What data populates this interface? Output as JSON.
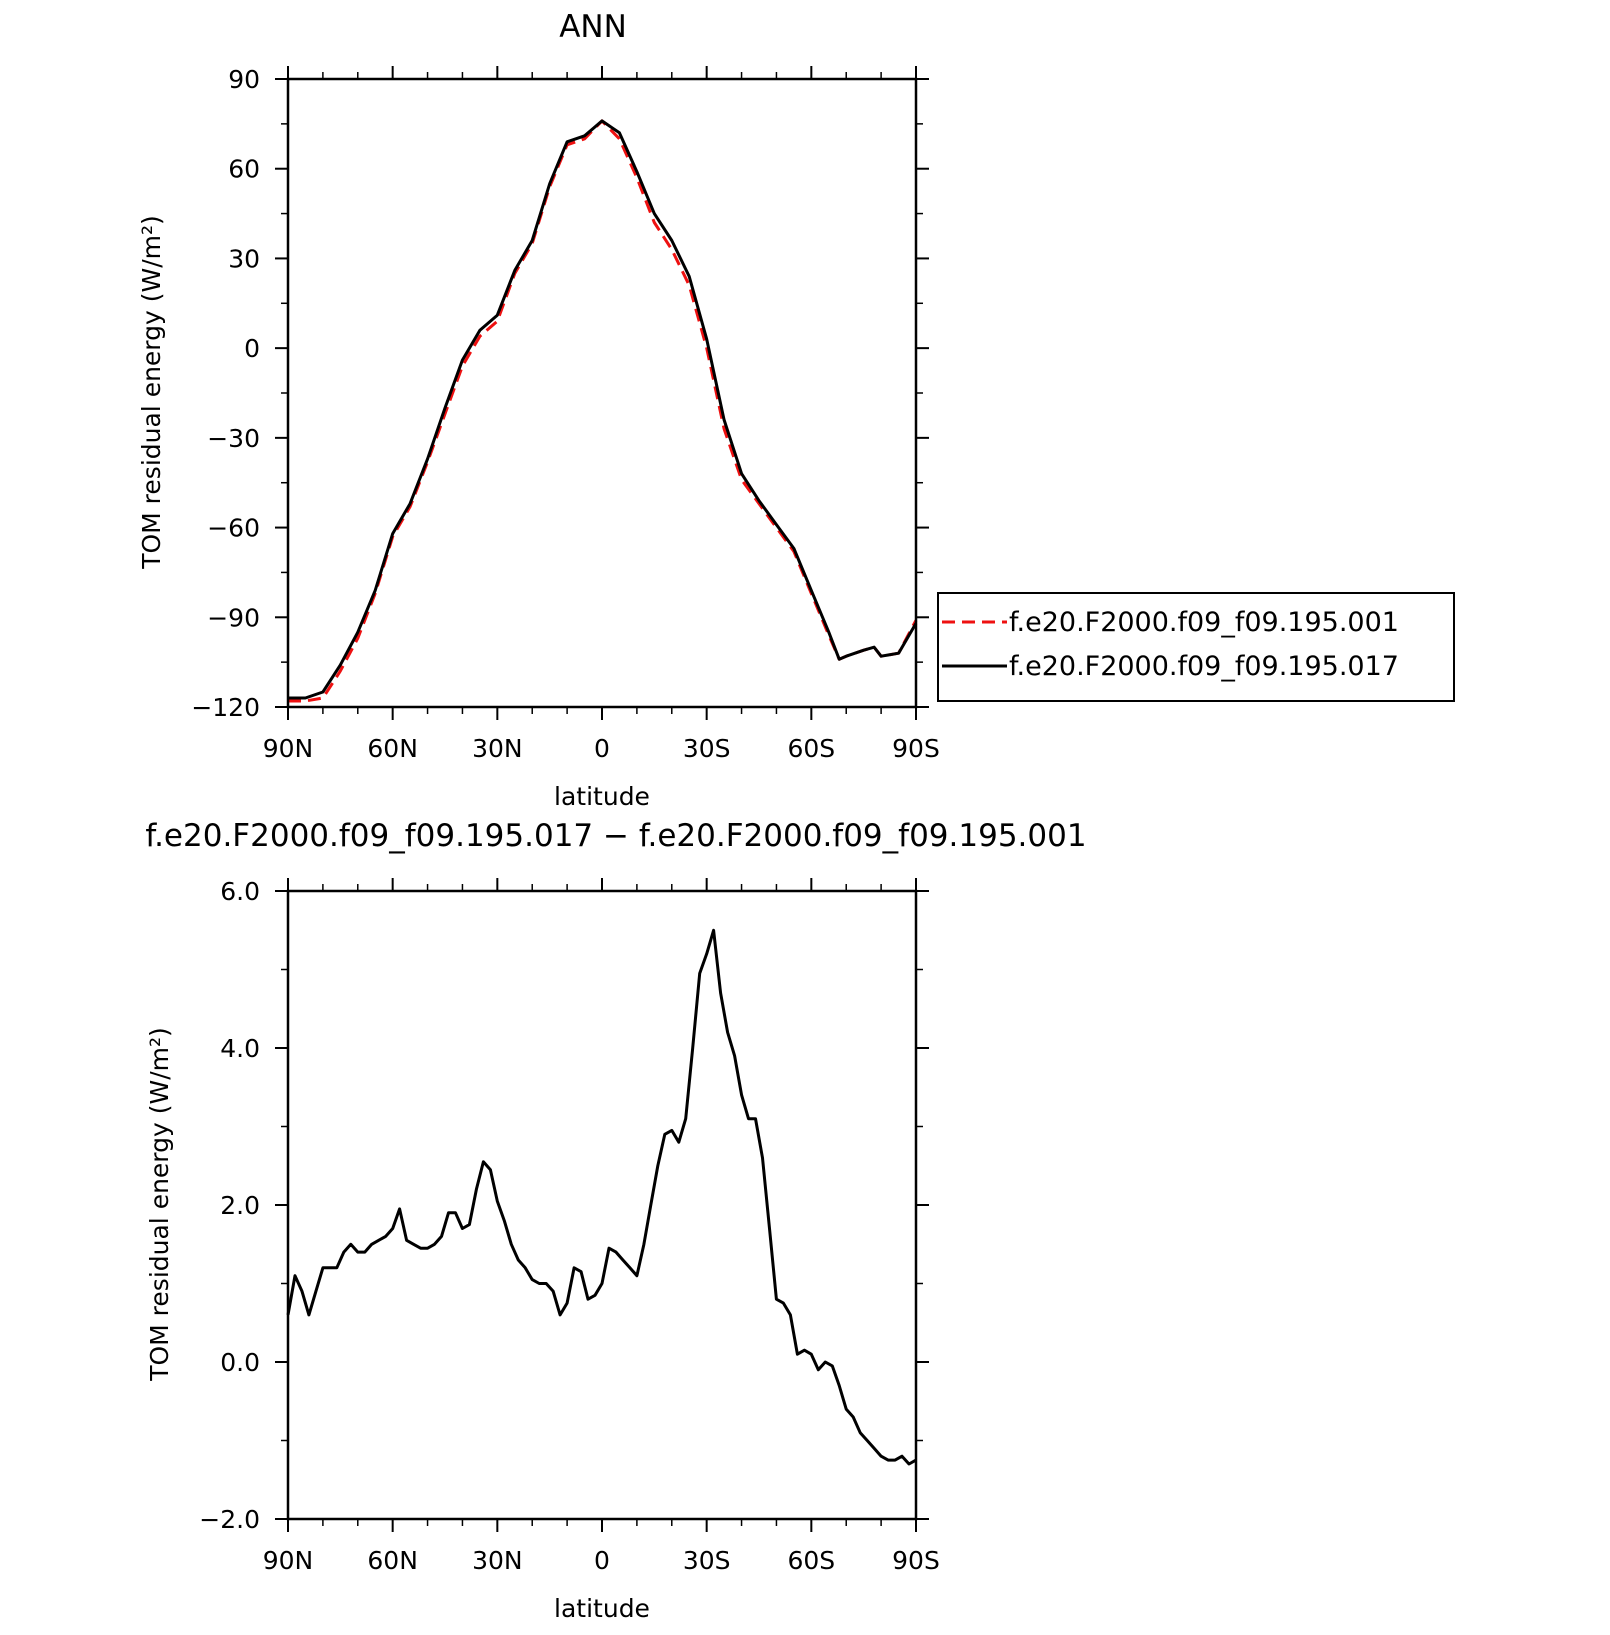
{
  "chart_data": [
    {
      "type": "line",
      "title": "ANN",
      "xlabel": "latitude",
      "ylabel": "TOM residual energy (W/m²)",
      "xlim": [
        90,
        -90
      ],
      "ylim": [
        -120,
        90
      ],
      "xticks": [
        90,
        60,
        30,
        0,
        -30,
        -60,
        -90
      ],
      "xtick_labels": [
        "90N",
        "60N",
        "30N",
        "0",
        "30S",
        "60S",
        "90S"
      ],
      "yticks": [
        -120,
        -90,
        -60,
        -30,
        0,
        30,
        60,
        90
      ],
      "ytick_labels": [
        "−120",
        "−90",
        "−60",
        "−30",
        "0",
        "30",
        "60",
        "90"
      ],
      "legend_position": "right",
      "series": [
        {
          "name": "f.e20.F2000.f09_f09.195.001",
          "color": "#ee1111",
          "dash": "dashed",
          "x": [
            90,
            85,
            80,
            75,
            70,
            65,
            60,
            55,
            50,
            45,
            40,
            35,
            30,
            25,
            20,
            15,
            10,
            5,
            0,
            -5,
            -10,
            -15,
            -20,
            -25,
            -30,
            -35,
            -40,
            -45,
            -50,
            -55,
            -60,
            -65,
            -68,
            -70,
            -75,
            -78,
            -80,
            -85,
            -90
          ],
          "y": [
            -118,
            -118,
            -117,
            -108,
            -97,
            -82,
            -63,
            -53,
            -38,
            -22,
            -6,
            4,
            9,
            25,
            35,
            54,
            68,
            70,
            76,
            70,
            57,
            42,
            33,
            21,
            0,
            -27,
            -44,
            -52,
            -60,
            -68,
            -82,
            -96,
            -104,
            -103,
            -101,
            -100,
            -103,
            -102,
            -91
          ],
          "display": "dashed red line"
        },
        {
          "name": "f.e20.F2000.f09_f09.195.017",
          "color": "#000000",
          "dash": "solid",
          "x": [
            90,
            85,
            80,
            75,
            70,
            65,
            60,
            55,
            50,
            45,
            40,
            35,
            30,
            25,
            20,
            15,
            10,
            5,
            0,
            -5,
            -10,
            -15,
            -20,
            -25,
            -30,
            -35,
            -40,
            -45,
            -50,
            -55,
            -60,
            -65,
            -68,
            -70,
            -75,
            -78,
            -80,
            -85,
            -90
          ],
          "y": [
            -117,
            -117,
            -115,
            -106,
            -95,
            -81,
            -62,
            -52,
            -37,
            -20,
            -4,
            6,
            11,
            26,
            36,
            55,
            69,
            71,
            76,
            72,
            59,
            45,
            36,
            24,
            3,
            -24,
            -42,
            -51,
            -59,
            -67,
            -81,
            -95,
            -104,
            -103,
            -101,
            -100,
            -103,
            -102,
            -92
          ],
          "display": "solid black line"
        }
      ]
    },
    {
      "type": "line",
      "title": "f.e20.F2000.f09_f09.195.017 − f.e20.F2000.f09_f09.195.001",
      "xlabel": "latitude",
      "ylabel": "TOM residual energy (W/m²)",
      "xlim": [
        90,
        -90
      ],
      "ylim": [
        -2,
        6
      ],
      "xticks": [
        90,
        60,
        30,
        0,
        -30,
        -60,
        -90
      ],
      "xtick_labels": [
        "90N",
        "60N",
        "30N",
        "0",
        "30S",
        "60S",
        "90S"
      ],
      "yticks": [
        -2,
        0,
        2,
        4,
        6
      ],
      "ytick_labels": [
        "−2.0",
        "0.0",
        "2.0",
        "4.0",
        "6.0"
      ],
      "series": [
        {
          "color": "#000000",
          "x": [
            90,
            88,
            86,
            84,
            82,
            80,
            78,
            76,
            74,
            72,
            70,
            68,
            66,
            64,
            62,
            60,
            58,
            56,
            54,
            52,
            50,
            48,
            46,
            44,
            42,
            40,
            38,
            36,
            34,
            32,
            30,
            28,
            26,
            24,
            22,
            20,
            18,
            16,
            14,
            12,
            10,
            8,
            6,
            4,
            2,
            0,
            -2,
            -4,
            -6,
            -8,
            -10,
            -12,
            -14,
            -16,
            -18,
            -20,
            -22,
            -24,
            -26,
            -28,
            -30,
            -32,
            -34,
            -36,
            -38,
            -40,
            -42,
            -44,
            -46,
            -48,
            -50,
            -52,
            -54,
            -56,
            -58,
            -60,
            -62,
            -64,
            -66,
            -68,
            -70,
            -72,
            -74,
            -76,
            -78,
            -80,
            -82,
            -84,
            -86,
            -88,
            -90
          ],
          "y": [
            0.6,
            1.1,
            0.9,
            0.6,
            0.9,
            1.2,
            1.2,
            1.2,
            1.4,
            1.5,
            1.4,
            1.4,
            1.5,
            1.55,
            1.6,
            1.7,
            1.95,
            1.55,
            1.5,
            1.45,
            1.45,
            1.5,
            1.6,
            1.9,
            1.9,
            1.7,
            1.75,
            2.2,
            2.55,
            2.45,
            2.05,
            1.8,
            1.5,
            1.3,
            1.2,
            1.05,
            1.0,
            1.0,
            0.9,
            0.6,
            0.75,
            1.2,
            1.15,
            0.8,
            0.85,
            1.0,
            1.45,
            1.4,
            1.3,
            1.2,
            1.1,
            1.5,
            2.0,
            2.5,
            2.9,
            2.95,
            2.8,
            3.1,
            4.0,
            4.95,
            5.2,
            5.5,
            4.7,
            4.2,
            3.9,
            3.4,
            3.1,
            3.1,
            2.6,
            1.7,
            0.8,
            0.75,
            0.6,
            0.1,
            0.15,
            0.1,
            -0.1,
            0.0,
            -0.05,
            -0.3,
            -0.6,
            -0.7,
            -0.9,
            -1.0,
            -1.1,
            -1.2,
            -1.25,
            -1.25,
            -1.2,
            -1.3,
            -1.25
          ]
        }
      ]
    }
  ]
}
